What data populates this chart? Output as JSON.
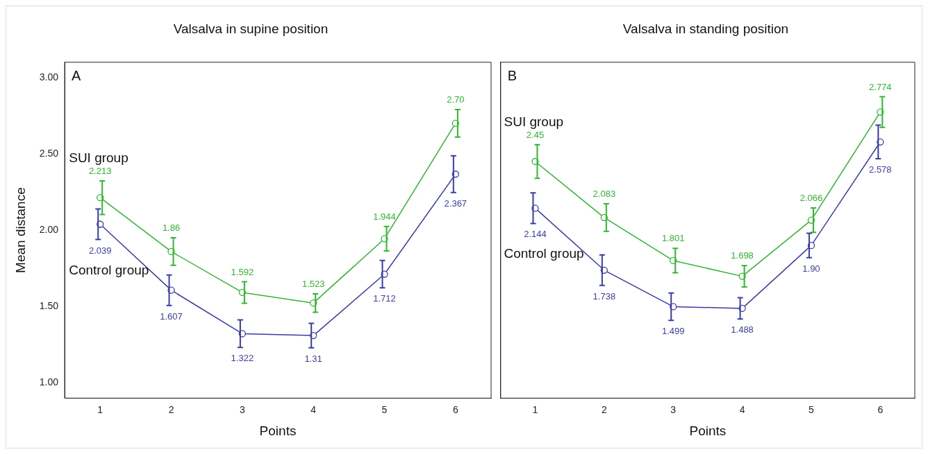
{
  "chart_data": [
    {
      "type": "line",
      "title": "Valsalva in supine position",
      "xlabel": "Points",
      "ylabel": "Mean distance",
      "categories": [
        "1",
        "2",
        "3",
        "4",
        "5",
        "6"
      ],
      "ylim": [
        0.9,
        3.1
      ],
      "yticks": [
        {
          "value": 1,
          "label": "1.00"
        },
        {
          "value": 1.5,
          "label": "1.50"
        },
        {
          "value": 2,
          "label": "2.00"
        },
        {
          "value": 2.5,
          "label": "2.50"
        },
        {
          "value": 3,
          "label": "3.00"
        }
      ],
      "grid": false,
      "legend": false,
      "marker": "circle",
      "line_style": "solid",
      "annotations": [
        "A"
      ],
      "series": [
        {
          "name": "SUI group",
          "color": "#2eb82e",
          "values": [
            2.213,
            1.86,
            1.592,
            1.523,
            1.944,
            2.7
          ],
          "value_labels": [
            "2.213",
            "1.86",
            "1.592",
            "1.523",
            "1.944",
            "2.70"
          ],
          "errors": [
            0.11,
            0.09,
            0.07,
            0.06,
            0.08,
            0.09
          ]
        },
        {
          "name": "Control group",
          "color": "#3b3ba8",
          "values": [
            2.039,
            1.607,
            1.322,
            1.31,
            1.712,
            2.367
          ],
          "value_labels": [
            "2.039",
            "1.607",
            "1.322",
            "1.31",
            "1.712",
            "2.367"
          ],
          "errors": [
            0.1,
            0.1,
            0.09,
            0.08,
            0.09,
            0.12
          ]
        }
      ]
    },
    {
      "type": "line",
      "title": "Valsalva in standing position",
      "xlabel": "Points",
      "categories": [
        "1",
        "2",
        "3",
        "4",
        "5",
        "6"
      ],
      "ylim": [
        0.9,
        3.1
      ],
      "tick_labels": "x",
      "grid": false,
      "legend": false,
      "marker": "circle",
      "line_style": "solid",
      "annotations": [
        "B"
      ],
      "series": [
        {
          "name": "SUI group",
          "color": "#2eb82e",
          "values": [
            2.45,
            2.083,
            1.801,
            1.698,
            2.066,
            2.774
          ],
          "value_labels": [
            "2.45",
            "2.083",
            "1.801",
            "1.698",
            "2.066",
            "2.774"
          ],
          "errors": [
            0.11,
            0.09,
            0.08,
            0.07,
            0.08,
            0.1
          ]
        },
        {
          "name": "Control group",
          "color": "#3b3ba8",
          "values": [
            2.144,
            1.738,
            1.499,
            1.488,
            1.9,
            2.578
          ],
          "value_labels": [
            "2.144",
            "1.738",
            "1.499",
            "1.488",
            "1.90",
            "2.578"
          ],
          "errors": [
            0.1,
            0.1,
            0.09,
            0.07,
            0.08,
            0.11
          ]
        }
      ]
    }
  ]
}
